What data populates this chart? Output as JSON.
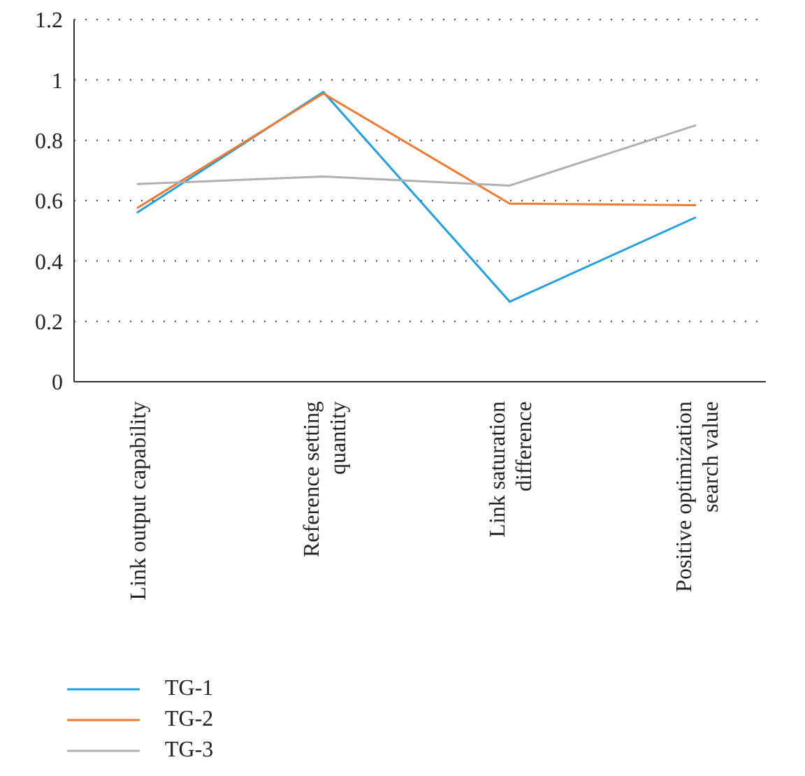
{
  "chart_data": {
    "type": "line",
    "categories": [
      "Link output capability",
      "Reference setting quantity",
      "Link saturation difference",
      "Positive optimization search value"
    ],
    "series": [
      {
        "name": "TG-1",
        "color": "#1f9fe0",
        "values": [
          0.56,
          0.96,
          0.265,
          0.545
        ]
      },
      {
        "name": "TG-2",
        "color": "#f07a30",
        "values": [
          0.575,
          0.955,
          0.59,
          0.585
        ]
      },
      {
        "name": "TG-3",
        "color": "#b0b0b0",
        "values": [
          0.655,
          0.68,
          0.65,
          0.85
        ]
      }
    ],
    "ylim": [
      0,
      1.2
    ],
    "yticks": [
      0,
      0.2,
      0.4,
      0.6,
      0.8,
      1,
      1.2
    ],
    "grid": "y",
    "legend": "bottom left",
    "marker": "none",
    "line_style": "solid"
  }
}
